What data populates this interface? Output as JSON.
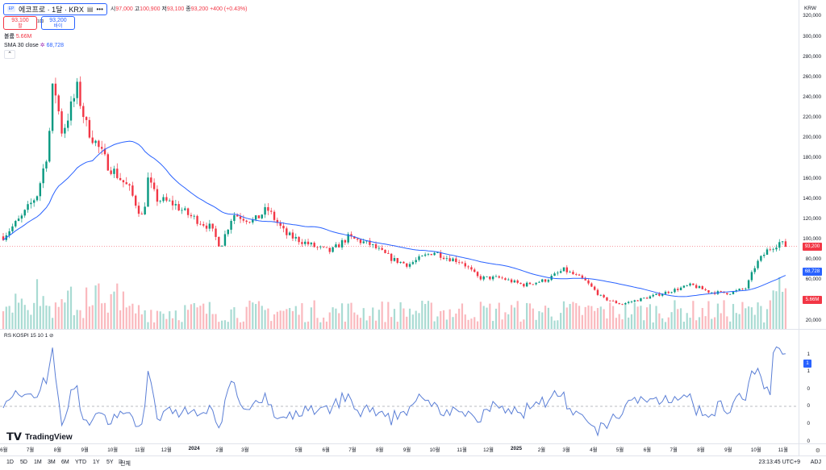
{
  "header": {
    "symbol": "에코프로 · 1달 · KRX",
    "ohlc": {
      "o_label": "시",
      "o": "97,000",
      "h_label": "고",
      "h": "100,900",
      "l_label": "저",
      "l": "93,100",
      "c_label": "종",
      "c": "93,200",
      "chg": "+400 (+0.43%)"
    },
    "sell_price": "93,100",
    "sell_label": "팔",
    "buy_price": "93,200",
    "buy_label": "바이",
    "spread": "100",
    "more": "•••"
  },
  "legend": {
    "volume_label": "볼륨",
    "volume_value": "5.66M",
    "sma_label": "SMA 30 close",
    "sma_value": "68,728",
    "rs_label": "RS KOSPI 15 10",
    "rs_value": "1"
  },
  "currency": "KRW",
  "y_axis": [
    "320,000",
    "300,000",
    "280,000",
    "260,000",
    "240,000",
    "220,000",
    "200,000",
    "180,000",
    "160,000",
    "140,000",
    "120,000",
    "100,000",
    "80,000",
    "60,000",
    "20,000"
  ],
  "badges": {
    "price": "93,200",
    "sma": "68,728",
    "volume": "5.66M",
    "rs": "1"
  },
  "rs_axis": [
    "1",
    "1",
    "0",
    "0",
    "0",
    "0"
  ],
  "x_axis": [
    "6월",
    "7월",
    "8월",
    "9월",
    "10월",
    "11월",
    "12월",
    "2024",
    "2월",
    "3월",
    "5월",
    "6월",
    "7월",
    "8월",
    "9월",
    "10월",
    "11월",
    "12월",
    "2025",
    "2월",
    "3월",
    "4월",
    "5월",
    "6월",
    "7월",
    "8월",
    "9월",
    "10월",
    "11월"
  ],
  "bottom_bar": {
    "ranges": [
      "1D",
      "5D",
      "1M",
      "3M",
      "6M",
      "YTD",
      "1Y",
      "5Y",
      "전체"
    ],
    "time": "23:13:45 UTC+9",
    "adj": "ADJ"
  },
  "logo_text": "TradingView",
  "colors": {
    "up": "#089981",
    "down": "#f23645",
    "sma": "#2962ff",
    "rs": "#5b7fd6"
  },
  "chart_data": {
    "type": "candlestick",
    "y_unit": "KRW",
    "ylim": [
      10000,
      325000
    ],
    "x_start": "2023-05-30",
    "x_end": "2025-11-05",
    "anchors": [
      {
        "date": "2023-05-30",
        "close": 103000
      },
      {
        "date": "2023-06-20",
        "close": 122000
      },
      {
        "date": "2023-07-08",
        "close": 145000
      },
      {
        "date": "2023-07-20",
        "close": 190000
      },
      {
        "date": "2023-07-26",
        "close": 258000
      },
      {
        "date": "2023-08-05",
        "close": 205000
      },
      {
        "date": "2023-08-22",
        "close": 248000
      },
      {
        "date": "2023-09-01",
        "close": 213000
      },
      {
        "date": "2023-09-25",
        "close": 175000
      },
      {
        "date": "2023-10-20",
        "close": 150000
      },
      {
        "date": "2023-11-05",
        "close": 120000
      },
      {
        "date": "2023-11-10",
        "close": 160000
      },
      {
        "date": "2023-11-20",
        "close": 140000
      },
      {
        "date": "2023-12-10",
        "close": 135000
      },
      {
        "date": "2023-12-25",
        "close": 125000
      },
      {
        "date": "2024-01-20",
        "close": 112000
      },
      {
        "date": "2024-02-01",
        "close": 93000
      },
      {
        "date": "2024-02-15",
        "close": 125000
      },
      {
        "date": "2024-03-10",
        "close": 118000
      },
      {
        "date": "2024-03-25",
        "close": 130000
      },
      {
        "date": "2024-04-15",
        "close": 105000
      },
      {
        "date": "2024-05-20",
        "close": 92000
      },
      {
        "date": "2024-06-05",
        "close": 88000
      },
      {
        "date": "2024-06-25",
        "close": 102000
      },
      {
        "date": "2024-07-20",
        "close": 95000
      },
      {
        "date": "2024-08-15",
        "close": 80000
      },
      {
        "date": "2024-09-01",
        "close": 75000
      },
      {
        "date": "2024-09-30",
        "close": 88000
      },
      {
        "date": "2024-10-15",
        "close": 82000
      },
      {
        "date": "2024-11-01",
        "close": 78000
      },
      {
        "date": "2024-11-20",
        "close": 62000
      },
      {
        "date": "2024-12-15",
        "close": 62000
      },
      {
        "date": "2025-01-10",
        "close": 55000
      },
      {
        "date": "2025-02-05",
        "close": 60000
      },
      {
        "date": "2025-02-25",
        "close": 70000
      },
      {
        "date": "2025-03-20",
        "close": 60000
      },
      {
        "date": "2025-04-10",
        "close": 42000
      },
      {
        "date": "2025-05-01",
        "close": 36000
      },
      {
        "date": "2025-06-10",
        "close": 45000
      },
      {
        "date": "2025-07-20",
        "close": 55000
      },
      {
        "date": "2025-08-10",
        "close": 48000
      },
      {
        "date": "2025-09-01",
        "close": 47000
      },
      {
        "date": "2025-09-20",
        "close": 52000
      },
      {
        "date": "2025-10-01",
        "close": 75000
      },
      {
        "date": "2025-10-15",
        "close": 90000
      },
      {
        "date": "2025-10-28",
        "close": 97000
      },
      {
        "date": "2025-11-05",
        "close": 93200
      }
    ],
    "last": {
      "open": 97000,
      "high": 100900,
      "low": 93100,
      "close": 93200
    },
    "sma_last": 68728,
    "volume_last": "5.66M",
    "rs_last": 1
  }
}
